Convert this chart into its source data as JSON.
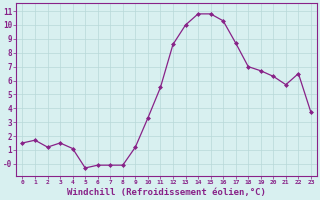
{
  "x": [
    0,
    1,
    2,
    3,
    4,
    5,
    6,
    7,
    8,
    9,
    10,
    11,
    12,
    13,
    14,
    15,
    16,
    17,
    18,
    19,
    20,
    21,
    22,
    23
  ],
  "y": [
    1.5,
    1.7,
    1.2,
    1.5,
    1.1,
    -0.3,
    -0.1,
    -0.1,
    -0.1,
    1.2,
    3.3,
    5.5,
    8.6,
    10.0,
    10.8,
    10.8,
    10.3,
    8.7,
    7.0,
    6.7,
    6.3,
    5.7,
    6.5,
    3.7
  ],
  "line_color": "#882288",
  "marker": "D",
  "markersize": 2.0,
  "linewidth": 0.9,
  "xlabel": "Windchill (Refroidissement éolien,°C)",
  "xlabel_fontsize": 6.5,
  "ytick_vals": [
    0,
    1,
    2,
    3,
    4,
    5,
    6,
    7,
    8,
    9,
    10,
    11
  ],
  "ytick_labels": [
    "-0",
    "1",
    "2",
    "3",
    "4",
    "5",
    "6",
    "7",
    "8",
    "9",
    "10",
    "11"
  ],
  "ylim": [
    -0.9,
    11.6
  ],
  "xlim": [
    -0.5,
    23.5
  ],
  "xtick_labels": [
    "0",
    "1",
    "2",
    "3",
    "4",
    "5",
    "6",
    "7",
    "8",
    "9",
    "10",
    "11",
    "12",
    "13",
    "14",
    "15",
    "16",
    "17",
    "18",
    "19",
    "20",
    "21",
    "22",
    "23"
  ],
  "background_color": "#d8f0f0",
  "grid_color": "#b8d8d8",
  "line_border_color": "#882288",
  "label_color": "#882288",
  "spine_color": "#882288"
}
